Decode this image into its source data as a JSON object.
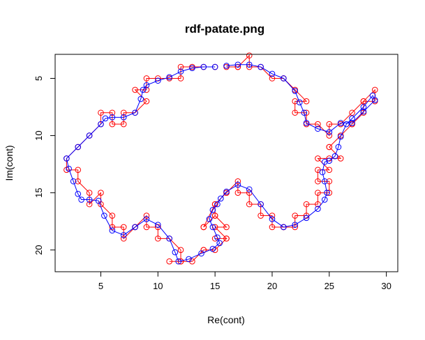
{
  "chart_data": {
    "type": "line",
    "title": "rdf-patate.png",
    "xlabel": "Re(cont)",
    "ylabel": "Im(cont)",
    "xlim": [
      1.0,
      31.0
    ],
    "ylim": [
      21.9,
      2.9
    ],
    "y_axis_reversed": true,
    "grid": false,
    "legend": "none",
    "x_ticks": [
      5,
      10,
      15,
      20,
      25,
      30
    ],
    "y_ticks": [
      5,
      10,
      15,
      20
    ],
    "series": [
      {
        "color": "#ff0000",
        "marker": "open-circle",
        "x": [
          15,
          14,
          13,
          12,
          12,
          11,
          10,
          9,
          9,
          8,
          9,
          8,
          7,
          7,
          6,
          6,
          5,
          5,
          4,
          3,
          3,
          2,
          2,
          3,
          3,
          4,
          4,
          5,
          5,
          6,
          6,
          7,
          7,
          8,
          8,
          9,
          9,
          10,
          10,
          11,
          12,
          12,
          11,
          12,
          13,
          14,
          14,
          15,
          16,
          15,
          16,
          15,
          16,
          15,
          15,
          14,
          14,
          15,
          15,
          16,
          16,
          17,
          17,
          18,
          18,
          19,
          19,
          20,
          20,
          21,
          21,
          22,
          22,
          23,
          23,
          24,
          24,
          25,
          25,
          24,
          24,
          25,
          24,
          25,
          26,
          25,
          25,
          26,
          27,
          27,
          28,
          28,
          29,
          29,
          28,
          27,
          26,
          25,
          25,
          24,
          23,
          23,
          22,
          22,
          23,
          22,
          21,
          21,
          20,
          19,
          18,
          18,
          17,
          17,
          16
        ],
        "y": [
          4,
          4,
          4,
          4,
          5,
          5,
          5,
          5,
          6,
          6,
          7,
          8,
          8,
          9,
          9,
          8,
          8,
          9,
          10,
          11,
          11,
          12,
          13,
          13,
          14,
          15,
          16,
          15,
          16,
          17,
          18,
          18,
          19,
          18,
          18,
          17,
          18,
          18,
          19,
          19,
          20,
          21,
          21,
          21,
          21,
          20,
          20,
          20,
          19,
          19,
          19,
          18,
          18,
          17,
          16,
          18,
          18,
          17,
          16,
          15,
          15,
          14,
          15,
          15,
          16,
          16,
          17,
          17,
          18,
          18,
          18,
          18,
          17,
          17,
          16,
          16,
          15,
          15,
          14,
          14,
          13,
          13,
          12,
          12,
          12,
          11,
          11,
          10,
          9,
          9,
          8,
          7,
          7,
          6,
          7,
          8,
          9,
          9,
          10,
          9,
          9,
          8,
          8,
          7,
          7,
          6,
          5,
          5,
          5,
          4,
          4,
          3,
          4,
          4,
          4
        ]
      },
      {
        "color": "#0000ff",
        "marker": "open-circle",
        "x": [
          15,
          14,
          13,
          12,
          11,
          10,
          9,
          8.7,
          8.5,
          8,
          7,
          6,
          5.4,
          5,
          4,
          3,
          2,
          2.2,
          2.6,
          3,
          3.3,
          4,
          4.8,
          5.3,
          6,
          7,
          8,
          9,
          10,
          11,
          11.5,
          11.8,
          12.7,
          13.8,
          14.8,
          15.4,
          15.2,
          14.8,
          14.5,
          14.8,
          15.2,
          15.5,
          16,
          17,
          18,
          19,
          20,
          21,
          22,
          23,
          24,
          24.6,
          24.8,
          24.6,
          24.4,
          24.6,
          25,
          25.5,
          25.8,
          26,
          26.5,
          27,
          28,
          28.8,
          29,
          28,
          27,
          26,
          25,
          24,
          23,
          22.8,
          22.4,
          22,
          21,
          20,
          19,
          18,
          17,
          16
        ],
        "y": [
          4.0,
          4.0,
          4.1,
          4.4,
          4.9,
          5.2,
          5.6,
          6.0,
          6.8,
          8.0,
          8.4,
          8.4,
          8.5,
          9.0,
          10.0,
          11.0,
          12.0,
          12.9,
          14.0,
          15.1,
          15.6,
          15.6,
          15.7,
          17.0,
          18.3,
          18.7,
          18.0,
          17.3,
          17.8,
          19.0,
          20.2,
          21.0,
          20.8,
          20.3,
          19.9,
          19.4,
          18.9,
          18.0,
          17.3,
          16.5,
          16.0,
          15.5,
          14.9,
          14.3,
          14.7,
          16.0,
          17.3,
          18.0,
          17.8,
          17.2,
          16.4,
          15.6,
          15.0,
          14.0,
          13.2,
          12.3,
          12.2,
          11.8,
          11.0,
          10.1,
          9.0,
          8.5,
          7.5,
          6.5,
          6.9,
          7.9,
          8.9,
          8.9,
          9.7,
          9.4,
          8.9,
          8.0,
          7.1,
          6.1,
          5.0,
          4.6,
          4.0,
          3.8,
          3.8,
          3.9
        ]
      }
    ]
  }
}
